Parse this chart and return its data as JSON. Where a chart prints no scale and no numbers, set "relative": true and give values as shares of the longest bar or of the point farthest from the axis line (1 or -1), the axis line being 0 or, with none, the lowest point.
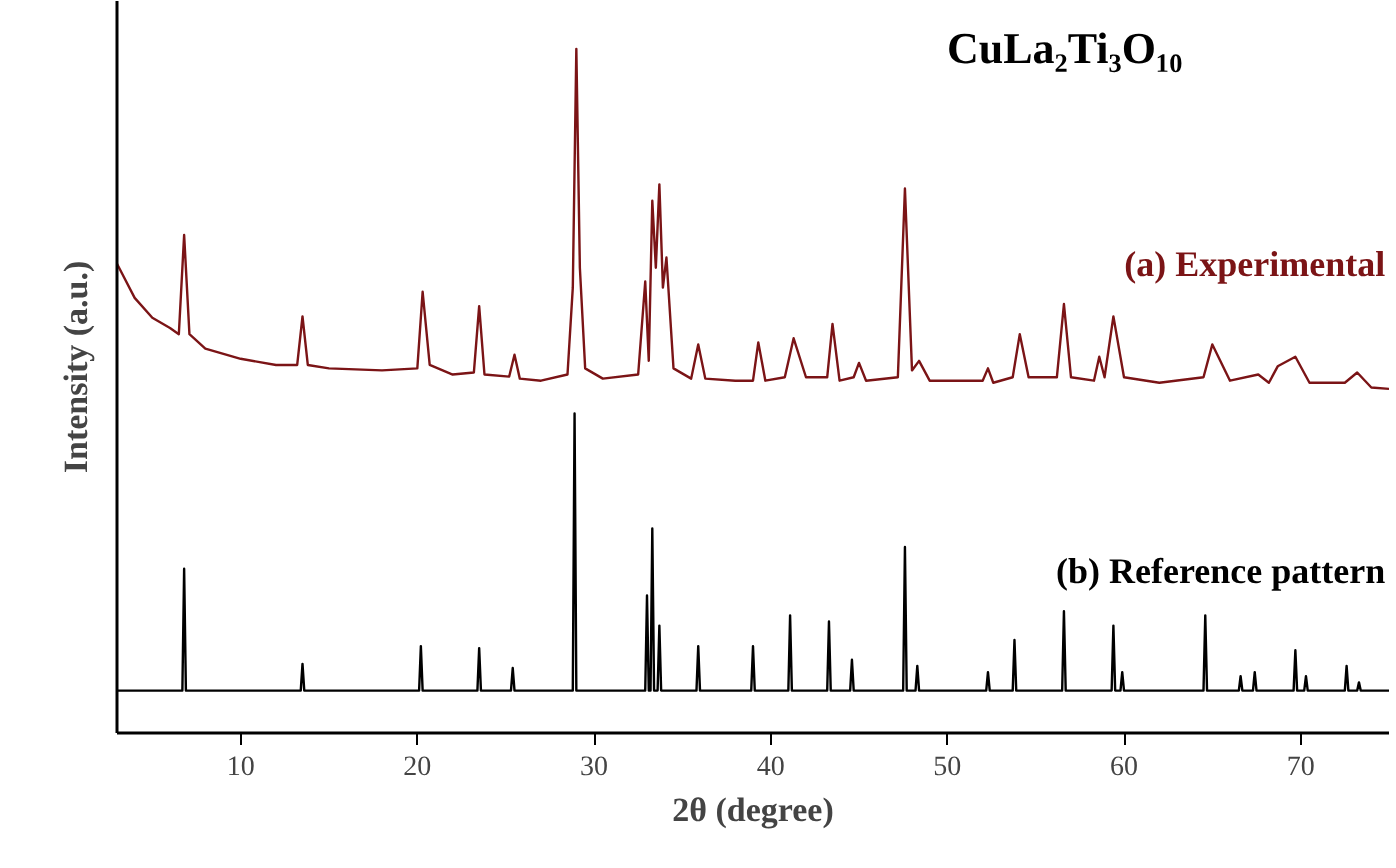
{
  "chart_data": {
    "type": "line",
    "relative": true,
    "title": "CuLa₂Ti₃O₁₀",
    "xlabel": "2θ (degree)",
    "ylabel": "Intensity (a.u.)",
    "xlim": [
      3,
      75
    ],
    "xticks": [
      10,
      20,
      30,
      40,
      50,
      60,
      70
    ],
    "grid": false,
    "legend": false,
    "marker": "none",
    "line_style": "solid",
    "series": [
      {
        "name": "(a) Experimental",
        "color": "#7b1416",
        "x": [
          3,
          4,
          5,
          6,
          6.5,
          6.8,
          7.1,
          8,
          10,
          12,
          13.2,
          13.5,
          13.8,
          15,
          18,
          20,
          20.3,
          20.7,
          22,
          23.2,
          23.5,
          23.8,
          25.2,
          25.5,
          25.8,
          27,
          28.5,
          28.8,
          29.0,
          29.2,
          29.5,
          30.5,
          32.5,
          32.9,
          33.1,
          33.3,
          33.5,
          33.7,
          33.9,
          34.1,
          34.5,
          35.5,
          35.9,
          36.3,
          38,
          39,
          39.3,
          39.7,
          40.8,
          41.3,
          42,
          43.2,
          43.5,
          43.9,
          44.7,
          45,
          45.4,
          47.2,
          47.6,
          48.0,
          48.4,
          49,
          52,
          52.3,
          52.6,
          53.7,
          54.1,
          54.6,
          56.2,
          56.6,
          57,
          58.3,
          58.6,
          58.9,
          59.4,
          60,
          62,
          64.5,
          65,
          66,
          67.6,
          68.2,
          68.7,
          69.7,
          70.5,
          72.5,
          73.2,
          74,
          75
        ],
        "values": [
          0.686,
          0.636,
          0.607,
          0.592,
          0.583,
          0.728,
          0.583,
          0.562,
          0.547,
          0.538,
          0.538,
          0.609,
          0.538,
          0.533,
          0.53,
          0.533,
          0.645,
          0.538,
          0.524,
          0.527,
          0.624,
          0.524,
          0.521,
          0.553,
          0.518,
          0.515,
          0.524,
          0.651,
          1,
          0.68,
          0.533,
          0.518,
          0.524,
          0.66,
          0.544,
          0.778,
          0.68,
          0.802,
          0.651,
          0.695,
          0.533,
          0.518,
          0.568,
          0.518,
          0.515,
          0.515,
          0.571,
          0.515,
          0.52,
          0.577,
          0.52,
          0.52,
          0.598,
          0.515,
          0.52,
          0.541,
          0.515,
          0.52,
          0.796,
          0.53,
          0.544,
          0.515,
          0.515,
          0.533,
          0.512,
          0.52,
          0.583,
          0.52,
          0.52,
          0.627,
          0.52,
          0.515,
          0.55,
          0.52,
          0.609,
          0.52,
          0.512,
          0.52,
          0.568,
          0.515,
          0.524,
          0.512,
          0.536,
          0.55,
          0.512,
          0.512,
          0.527,
          0.505,
          0.503
        ]
      },
      {
        "name": "(b) Reference pattern",
        "color": "#000000",
        "x": [
          3,
          6.7,
          6.8,
          6.9,
          13.4,
          13.5,
          13.6,
          20.1,
          20.2,
          20.3,
          23.4,
          23.5,
          23.6,
          25.3,
          25.4,
          25.5,
          28.8,
          28.9,
          29.0,
          32.9,
          33.0,
          33.1,
          33.2,
          33.3,
          33.4,
          33.6,
          33.7,
          33.8,
          35.8,
          35.9,
          36.0,
          38.9,
          39.0,
          39.1,
          41.0,
          41.1,
          41.2,
          43.2,
          43.3,
          43.4,
          44.5,
          44.6,
          44.7,
          47.5,
          47.6,
          47.7,
          48.2,
          48.3,
          48.4,
          52.2,
          52.3,
          52.4,
          53.7,
          53.8,
          53.9,
          56.5,
          56.6,
          56.7,
          59.3,
          59.4,
          59.5,
          59.8,
          59.9,
          60.0,
          64.5,
          64.6,
          64.7,
          66.5,
          66.6,
          66.7,
          67.3,
          67.4,
          67.5,
          69.6,
          69.7,
          69.8,
          70.2,
          70.3,
          70.4,
          72.5,
          72.6,
          72.7,
          73.2,
          73.3,
          73.4,
          75
        ],
        "values": [
          0.062,
          0.062,
          0.24,
          0.062,
          0.062,
          0.101,
          0.062,
          0.062,
          0.127,
          0.062,
          0.062,
          0.124,
          0.062,
          0.062,
          0.095,
          0.062,
          0.062,
          0.467,
          0.062,
          0.062,
          0.201,
          0.062,
          0.062,
          0.299,
          0.062,
          0.062,
          0.157,
          0.062,
          0.062,
          0.127,
          0.062,
          0.062,
          0.127,
          0.062,
          0.062,
          0.172,
          0.062,
          0.062,
          0.163,
          0.062,
          0.062,
          0.107,
          0.062,
          0.062,
          0.272,
          0.062,
          0.062,
          0.098,
          0.062,
          0.062,
          0.089,
          0.062,
          0.062,
          0.136,
          0.062,
          0.062,
          0.178,
          0.062,
          0.062,
          0.157,
          0.062,
          0.062,
          0.089,
          0.062,
          0.062,
          0.172,
          0.062,
          0.062,
          0.083,
          0.062,
          0.062,
          0.089,
          0.062,
          0.062,
          0.121,
          0.062,
          0.062,
          0.083,
          0.062,
          0.062,
          0.098,
          0.062,
          0.062,
          0.074,
          0.062,
          0.062
        ]
      }
    ]
  }
}
